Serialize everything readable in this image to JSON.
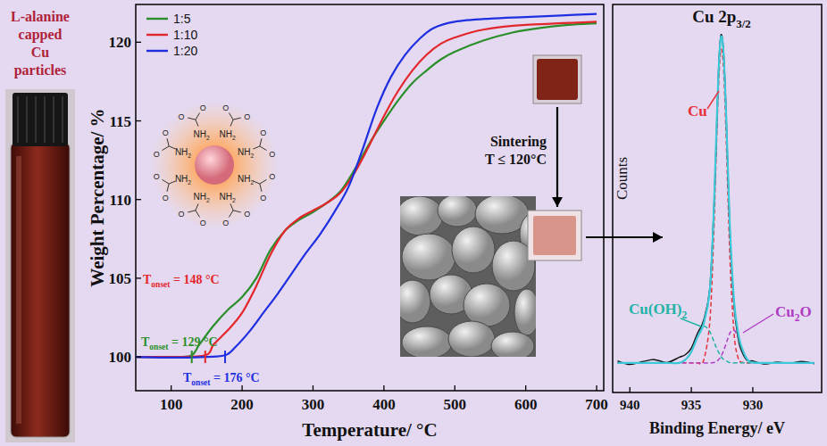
{
  "chart_data": [
    {
      "type": "line",
      "xlabel": "Temperature/ °C",
      "ylabel": "Weight Percentage/ %",
      "xlim": [
        50,
        710
      ],
      "ylim": [
        97.85,
        122.4
      ],
      "xticks": [
        100,
        200,
        300,
        400,
        500,
        600,
        700
      ],
      "yticks": [
        100,
        105,
        110,
        115,
        120
      ],
      "grid": false,
      "legend": "upper left",
      "series": [
        {
          "name": "1:5",
          "color": "#2a8f2a",
          "x": [
            50,
            80,
            110,
            129,
            140,
            160,
            180,
            200,
            220,
            240,
            260,
            280,
            300,
            320,
            340,
            360,
            380,
            400,
            420,
            440,
            460,
            480,
            500,
            540,
            580,
            620,
            660,
            700
          ],
          "values": [
            100,
            100,
            100,
            100.1,
            100.8,
            102,
            103,
            103.8,
            105,
            106.8,
            108,
            108.7,
            109.2,
            109.8,
            110.6,
            112,
            113.6,
            115,
            116.3,
            117.4,
            118.2,
            118.9,
            119.4,
            120.1,
            120.6,
            120.9,
            121.1,
            121.2
          ]
        },
        {
          "name": "1:10",
          "color": "#e3262b",
          "x": [
            50,
            100,
            148,
            160,
            180,
            200,
            220,
            240,
            260,
            280,
            300,
            320,
            340,
            360,
            380,
            400,
            420,
            440,
            460,
            480,
            500,
            540,
            600,
            700
          ],
          "values": [
            100,
            100,
            100.1,
            100.8,
            101.7,
            102.8,
            104.5,
            106.5,
            108,
            108.8,
            109.3,
            109.8,
            110.5,
            111.8,
            113.5,
            115.3,
            116.9,
            118.2,
            119.2,
            119.9,
            120.3,
            120.8,
            121.1,
            121.3
          ]
        },
        {
          "name": "1:20",
          "color": "#1f2fe0",
          "x": [
            50,
            100,
            150,
            176,
            190,
            210,
            230,
            250,
            270,
            290,
            310,
            330,
            350,
            370,
            390,
            410,
            430,
            450,
            470,
            500,
            550,
            600,
            650,
            700
          ],
          "values": [
            100,
            99.95,
            100,
            100.1,
            100.6,
            101.6,
            102.8,
            104,
            105.3,
            106.6,
            107.8,
            109.2,
            110.8,
            113.2,
            115.8,
            117.8,
            119.2,
            120.2,
            120.9,
            121.3,
            121.5,
            121.6,
            121.7,
            121.8
          ]
        }
      ],
      "annotations": [
        {
          "text_parts": [
            "T",
            "onset",
            " = 129 °C"
          ],
          "x": 129,
          "y": 100,
          "color": "#2a8f2a"
        },
        {
          "text_parts": [
            "T",
            "onset",
            " = 148 °C"
          ],
          "x": 148,
          "y": 100,
          "color": "#e3262b"
        },
        {
          "text_parts": [
            "T",
            "onset",
            " = 176 °C"
          ],
          "x": 176,
          "y": 100,
          "color": "#1f2fe0"
        }
      ]
    },
    {
      "type": "line",
      "title_parts": [
        "Cu 2p",
        "3/2"
      ],
      "xlabel": "Binding Energy/ eV",
      "ylabel": "Counts",
      "xlim": [
        941.4,
        924.4
      ],
      "ylim": [
        0,
        105
      ],
      "xticks": [
        940,
        935,
        930
      ],
      "tick_labels": "x",
      "grid": false,
      "x": [
        941,
        940,
        939,
        938,
        937,
        936,
        935.5,
        935,
        934.5,
        934,
        933.5,
        933.2,
        933,
        932.8,
        932.6,
        932.4,
        932.2,
        932,
        931.8,
        931.5,
        931.2,
        931,
        930.5,
        930,
        929,
        928,
        927,
        926,
        925
      ],
      "series": [
        {
          "color": "#111111",
          "line_style": "solid",
          "values": [
            8.5,
            7.6,
            8.3,
            8.9,
            8.1,
            9.5,
            10.2,
            12,
            16,
            19.5,
            28,
            47,
            65,
            86,
            96.5,
            93,
            78.5,
            57,
            39,
            22.5,
            15,
            12,
            8.8,
            8.5,
            7.7,
            8.2,
            7.9,
            8.4,
            7.8
          ]
        },
        {
          "color": "#3cc8d8",
          "line_style": "solid",
          "values": [
            8,
            8,
            8,
            8,
            8,
            8,
            8.8,
            11,
            15,
            18.6,
            27.5,
            46.7,
            66.3,
            85.6,
            96,
            92.9,
            77.9,
            57.9,
            40.1,
            23.8,
            16.3,
            13.2,
            9.2,
            8.1,
            8,
            8,
            8,
            8,
            8
          ]
        },
        {
          "color": "#e8303a",
          "line_style": "dashed",
          "values": [
            8,
            8,
            8,
            8,
            8,
            8,
            8,
            8,
            8,
            8.7,
            19,
            40.5,
            61.6,
            81.8,
            92.5,
            88.8,
            72.4,
            50.7,
            31.7,
            15,
            9.4,
            8.3,
            8,
            8,
            8,
            8,
            8,
            8,
            8
          ]
        },
        {
          "color": "#22b3a6",
          "line_style": "dashed",
          "values": [
            8,
            8,
            8,
            8,
            8,
            8,
            8.8,
            11,
            15,
            17.9,
            16.5,
            14.1,
            12.4,
            11,
            9.8,
            9,
            8.6,
            8.3,
            8,
            8,
            8,
            8,
            8,
            8,
            8,
            8,
            8,
            8,
            8
          ]
        },
        {
          "color": "#b03cc4",
          "line_style": "dashed",
          "values": [
            8,
            8,
            8,
            8,
            8,
            8,
            8,
            8,
            8,
            8,
            8,
            8.1,
            8.3,
            8.8,
            9.7,
            11.1,
            12.9,
            14.9,
            16.4,
            16.8,
            14.9,
            12.9,
            9.2,
            8.1,
            8,
            8,
            8,
            8,
            8
          ]
        }
      ],
      "annotations": [
        {
          "text_parts": [
            "Cu"
          ],
          "color": "#e8303a"
        },
        {
          "text_parts": [
            "Cu(OH)",
            "2"
          ],
          "color": "#22b3a6"
        },
        {
          "text_parts": [
            "Cu",
            "2",
            "O"
          ],
          "color": "#b03cc4"
        }
      ]
    }
  ],
  "header": {
    "lines": [
      "L-alanine",
      "capped",
      "Cu",
      "particles"
    ],
    "color": "#b0223a"
  },
  "illustration": {
    "amine_parts": [
      "NH",
      "2"
    ],
    "oxygen": "O",
    "ligands": 8
  },
  "sintering": {
    "lines": [
      "Sintering",
      "T ≤ 120°C"
    ]
  }
}
